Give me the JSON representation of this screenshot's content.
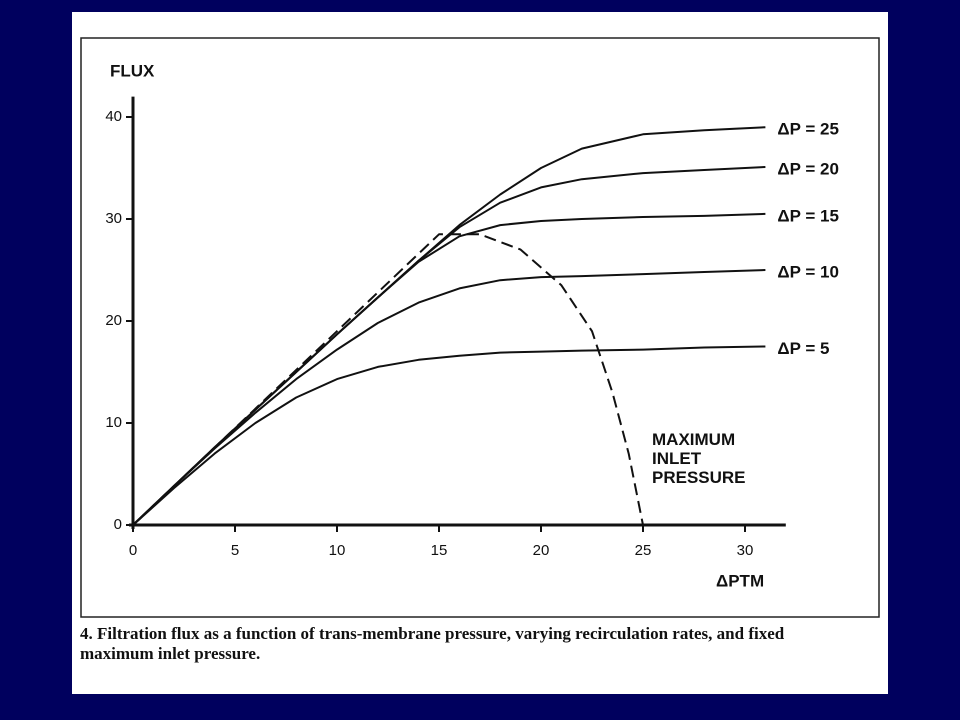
{
  "chart_data": {
    "type": "line",
    "x_label": "ΔPTM",
    "y_label": "FLUX",
    "caption": "4. Filtration flux as a function of trans-membrane pressure, varying recirculation rates, and fixed maximum inlet pressure.",
    "xlim": [
      0,
      32
    ],
    "ylim": [
      0,
      42
    ],
    "xticks": [
      0,
      5,
      10,
      15,
      20,
      25,
      30
    ],
    "yticks": [
      0,
      10,
      20,
      30,
      40
    ],
    "color": "#111111",
    "series": [
      {
        "name": "ΔP = 25",
        "x": [
          0,
          2,
          4,
          6,
          8,
          10,
          12,
          14,
          16,
          18,
          20,
          22,
          25,
          28,
          31
        ],
        "values": [
          0,
          3.8,
          7.6,
          11.3,
          15,
          18.7,
          22.3,
          25.9,
          29.4,
          32.4,
          35,
          36.9,
          38.3,
          38.7,
          39
        ]
      },
      {
        "name": "ΔP = 20",
        "x": [
          0,
          2,
          4,
          6,
          8,
          10,
          12,
          14,
          16,
          18,
          20,
          22,
          25,
          28,
          31
        ],
        "values": [
          0,
          3.8,
          7.6,
          11.3,
          15,
          18.7,
          22.3,
          25.9,
          29.2,
          31.6,
          33.1,
          33.9,
          34.5,
          34.8,
          35.1
        ]
      },
      {
        "name": "ΔP = 15",
        "x": [
          0,
          2,
          4,
          6,
          8,
          10,
          12,
          14,
          16,
          18,
          20,
          22,
          25,
          28,
          31
        ],
        "values": [
          0,
          3.8,
          7.6,
          11.3,
          15,
          18.7,
          22.3,
          25.8,
          28.3,
          29.4,
          29.8,
          30,
          30.2,
          30.3,
          30.5
        ]
      },
      {
        "name": "ΔP = 10",
        "x": [
          0,
          2,
          4,
          6,
          8,
          10,
          12,
          14,
          16,
          18,
          20,
          22,
          25,
          28,
          31
        ],
        "values": [
          0,
          3.8,
          7.5,
          11,
          14.3,
          17.2,
          19.8,
          21.8,
          23.2,
          24,
          24.3,
          24.4,
          24.6,
          24.8,
          25
        ]
      },
      {
        "name": "ΔP = 5",
        "x": [
          0,
          2,
          4,
          6,
          8,
          10,
          12,
          14,
          16,
          18,
          20,
          22,
          25,
          28,
          31
        ],
        "values": [
          0,
          3.6,
          7,
          10,
          12.5,
          14.3,
          15.5,
          16.2,
          16.6,
          16.9,
          17,
          17.1,
          17.2,
          17.4,
          17.5
        ]
      },
      {
        "name": "MAXIMUM INLET PRESSURE",
        "dashed": true,
        "x": [
          0,
          5,
          10,
          15,
          17,
          19,
          21,
          22.5,
          23.5,
          24.3,
          25
        ],
        "values": [
          0,
          9.5,
          19,
          28.5,
          28.5,
          27,
          23.5,
          19,
          13,
          7,
          0
        ]
      }
    ]
  }
}
